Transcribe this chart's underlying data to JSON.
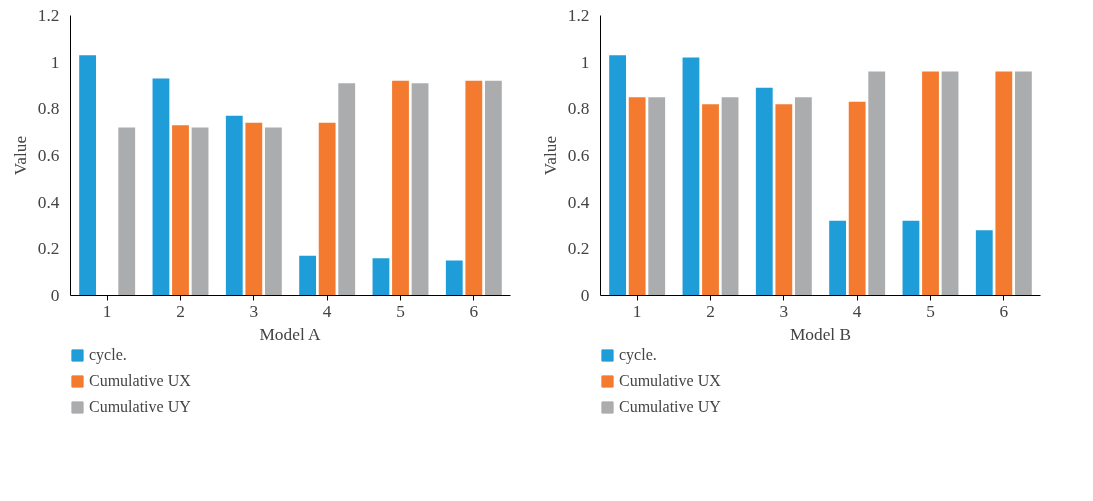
{
  "chart_data": [
    {
      "type": "bar",
      "xlabel": "Model A",
      "ylabel": "Value",
      "categories": [
        "1",
        "2",
        "3",
        "4",
        "5",
        "6"
      ],
      "ylim": [
        0,
        1.2
      ],
      "yticks": [
        0,
        0.2,
        0.4,
        0.6,
        0.8,
        1,
        1.2
      ],
      "grid": false,
      "legend": "bottom left",
      "series": [
        {
          "name": "cycle.",
          "color": "#1f9dd9",
          "values": [
            1.03,
            0.93,
            0.77,
            0.17,
            0.16,
            0.15
          ]
        },
        {
          "name": "Cumulative UX",
          "color": "#f37a2f",
          "values": [
            null,
            0.73,
            0.74,
            0.74,
            0.92,
            0.92
          ]
        },
        {
          "name": "Cumulative UY",
          "color": "#abacae",
          "values": [
            0.72,
            0.72,
            0.72,
            0.91,
            0.91,
            0.92
          ]
        }
      ]
    },
    {
      "type": "bar",
      "xlabel": "Model B",
      "ylabel": "Value",
      "categories": [
        "1",
        "2",
        "3",
        "4",
        "5",
        "6"
      ],
      "ylim": [
        0,
        1.2
      ],
      "yticks": [
        0,
        0.2,
        0.4,
        0.6,
        0.8,
        1,
        1.2
      ],
      "grid": false,
      "legend": "bottom left",
      "series": [
        {
          "name": "cycle.",
          "color": "#1f9dd9",
          "values": [
            1.03,
            1.02,
            0.89,
            0.32,
            0.32,
            0.28
          ]
        },
        {
          "name": "Cumulative UX",
          "color": "#f37a2f",
          "values": [
            0.85,
            0.82,
            0.82,
            0.83,
            0.96,
            0.96
          ]
        },
        {
          "name": "Cumulative UY",
          "color": "#abacae",
          "values": [
            0.85,
            0.85,
            0.85,
            0.96,
            0.96,
            0.96
          ]
        }
      ]
    }
  ]
}
